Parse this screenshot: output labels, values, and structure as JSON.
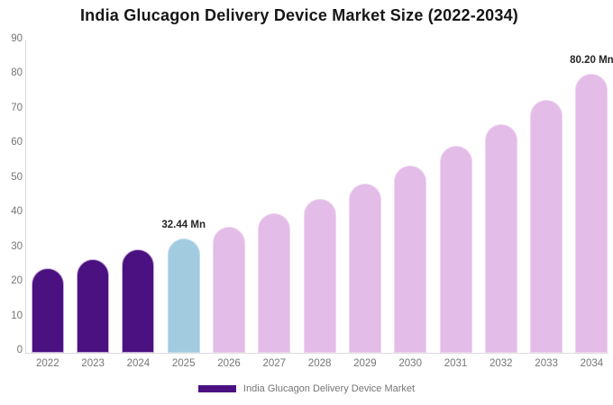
{
  "chart_data": {
    "type": "bar",
    "title": "India Glucagon Delivery Device Market Size (2022-2034)",
    "categories": [
      "2022",
      "2023",
      "2024",
      "2025",
      "2026",
      "2027",
      "2028",
      "2029",
      "2030",
      "2031",
      "2032",
      "2033",
      "2034"
    ],
    "values": [
      23.9,
      26.5,
      29.3,
      32.44,
      35.9,
      39.7,
      43.9,
      48.5,
      53.6,
      59.3,
      65.6,
      72.5,
      80.2
    ],
    "unit": "Mn",
    "xlabel": "",
    "ylabel": "",
    "ylim": [
      0,
      90
    ],
    "yticks": [
      0,
      10,
      20,
      30,
      40,
      50,
      60,
      70,
      80,
      90
    ],
    "grid": false,
    "legend_position": "bottom",
    "bar_colors": [
      "#4B1181",
      "#4B1181",
      "#4B1181",
      "#A3CBDF",
      "#E3BCE8",
      "#E3BCE8",
      "#E3BCE8",
      "#E3BCE8",
      "#E3BCE8",
      "#E3BCE8",
      "#E3BCE8",
      "#E3BCE8",
      "#E3BCE8"
    ],
    "bar_border_colors": [
      "#C9AEDC",
      "#C9AEDC",
      "#C9AEDC",
      "#C2DDEB",
      "#EED5F1",
      "#EED5F1",
      "#EED5F1",
      "#EED5F1",
      "#EED5F1",
      "#EED5F1",
      "#EED5F1",
      "#EED5F1",
      "#EED5F1"
    ],
    "annotations": [
      {
        "index": 3,
        "text": "32.44 Mn"
      },
      {
        "index": 12,
        "text": "80.20 Mn"
      }
    ],
    "axis_color": "#DBDBDB",
    "tick_label_color": "#757575",
    "background": "#FFFFFF"
  },
  "legend": {
    "label": "India Glucagon Delivery Device Market",
    "swatch_color": "#4B1181"
  }
}
